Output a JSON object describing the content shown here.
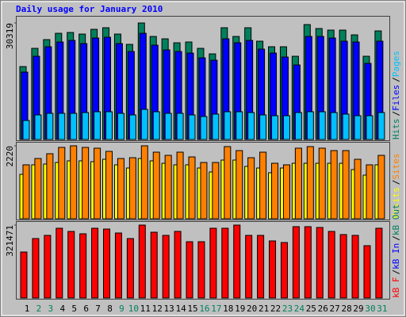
{
  "chart_data": [
    {
      "type": "bar",
      "title": "Daily usage for January 2010",
      "legend_separator": "/",
      "ylim": [
        0,
        30319
      ],
      "yticks": [
        30319
      ],
      "series": [
        {
          "name": "Hits",
          "color": "#00805c",
          "values": [
            18975,
            23719,
            25988,
            27638,
            27844,
            27431,
            28669,
            29081,
            27431,
            24750,
            30319,
            26813,
            26194,
            25163,
            25369,
            23719,
            22275,
            29081,
            26813,
            29081,
            25575,
            24131,
            24131,
            21656,
            29906,
            28875,
            28463,
            28463,
            27225,
            21656,
            28256
          ]
        },
        {
          "name": "Files",
          "color": "#0000ff",
          "values": [
            17531,
            21656,
            24131,
            25369,
            25781,
            24956,
            26400,
            26606,
            24956,
            22894,
            27638,
            24544,
            23306,
            22894,
            22481,
            21244,
            20625,
            26194,
            25163,
            25781,
            23513,
            22481,
            21450,
            19388,
            26813,
            26813,
            26400,
            25575,
            25369,
            19800,
            25575
          ]
        },
        {
          "name": "Pages",
          "color": "#00c0ff",
          "values": [
            4950,
            6394,
            6806,
            6806,
            6806,
            7013,
            7219,
            7219,
            6806,
            6394,
            7838,
            7219,
            6806,
            6806,
            6394,
            5981,
            6600,
            7219,
            7219,
            7013,
            6394,
            6188,
            6188,
            7013,
            7219,
            7219,
            7013,
            6600,
            6188,
            6188,
            7013
          ]
        }
      ]
    },
    {
      "type": "bar",
      "ylim": [
        0,
        2220
      ],
      "yticks": [
        2220
      ],
      "series": [
        {
          "name": "Visits",
          "color": "#ffff00",
          "values": [
            1351,
            1641,
            1665,
            1713,
            1762,
            1762,
            1737,
            1810,
            1641,
            1544,
            1834,
            1762,
            1689,
            1641,
            1641,
            1544,
            1424,
            1786,
            1786,
            1593,
            1544,
            1400,
            1544,
            1689,
            1689,
            1689,
            1689,
            1689,
            1496,
            1327,
            1641
          ]
        },
        {
          "name": "Sites",
          "color": "#ff8000",
          "values": [
            1641,
            1834,
            1979,
            2172,
            2220,
            2172,
            2148,
            2051,
            1834,
            1858,
            2220,
            2027,
            1930,
            2027,
            1882,
            1713,
            1713,
            2196,
            2075,
            1858,
            2027,
            1689,
            1641,
            2148,
            2196,
            2148,
            2075,
            2075,
            1810,
            1641,
            1930
          ]
        }
      ]
    },
    {
      "type": "bar",
      "ylim": [
        0,
        321471
      ],
      "yticks": [
        321471
      ],
      "series": [
        {
          "name": "kB F",
          "color": "#ff0000",
          "values": [
            202652,
            262050,
            276026,
            307472,
            293496,
            283014,
            307472,
            303978,
            286508,
            262050,
            321471,
            290002,
            276026,
            293496,
            248074,
            248074,
            307472,
            307472,
            321471,
            276026,
            276026,
            251568,
            244580,
            314460,
            314460,
            310966,
            293496,
            279520,
            276026,
            230604,
            307472
          ]
        }
      ],
      "extra_legend": [
        {
          "name": "kB In",
          "color": "#0000ff"
        },
        {
          "name": "kB Out",
          "color": "#00805c"
        }
      ],
      "categories": [
        1,
        2,
        3,
        4,
        5,
        6,
        7,
        8,
        9,
        10,
        11,
        12,
        13,
        14,
        15,
        16,
        17,
        18,
        19,
        20,
        21,
        22,
        23,
        24,
        25,
        26,
        27,
        28,
        29,
        30,
        31
      ],
      "weekend_days": [
        2,
        3,
        9,
        10,
        16,
        17,
        23,
        24,
        30,
        31
      ],
      "weekday_color": "#000000",
      "weekend_color": "#00805c"
    }
  ]
}
